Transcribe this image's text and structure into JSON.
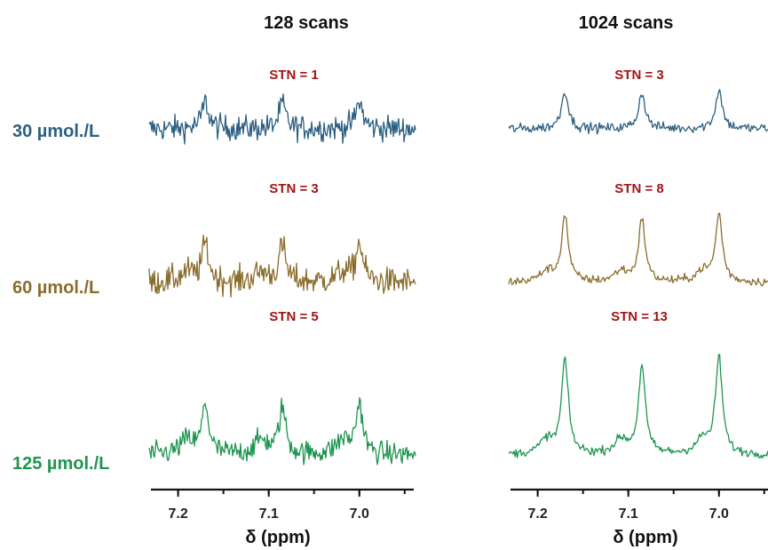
{
  "colors": {
    "30": "#2c5f82",
    "60": "#8a6d2e",
    "125": "#1e9550",
    "stn": "#a01515"
  },
  "chart_data": {
    "type": "line",
    "concentrations": [
      {
        "key": "30",
        "label": "30 µmol./L"
      },
      {
        "key": "60",
        "label": "60 µmol./L"
      },
      {
        "key": "125",
        "label": "125 µmol./L"
      }
    ],
    "panels": [
      {
        "title": "128 scans",
        "xlabel": "δ (ppm)",
        "xticks": [
          "7.2",
          "7.1",
          "7.0"
        ],
        "xlim": [
          7.23,
          6.94
        ],
        "stn": [
          "STN = 1",
          "STN = 3",
          "STN = 5"
        ]
      },
      {
        "title": "1024 scans",
        "xlabel": "δ (ppm)",
        "xticks": [
          "7.2",
          "7.1",
          "7.0"
        ],
        "xlim": [
          7.23,
          6.94
        ],
        "stn": [
          "STN = 3",
          "STN = 8",
          "STN = 13"
        ]
      }
    ],
    "peaks_ppm": [
      7.17,
      7.085,
      7.0
    ],
    "peak_intensity": [
      [
        1,
        3
      ],
      [
        3,
        8
      ],
      [
        5,
        13
      ]
    ]
  }
}
